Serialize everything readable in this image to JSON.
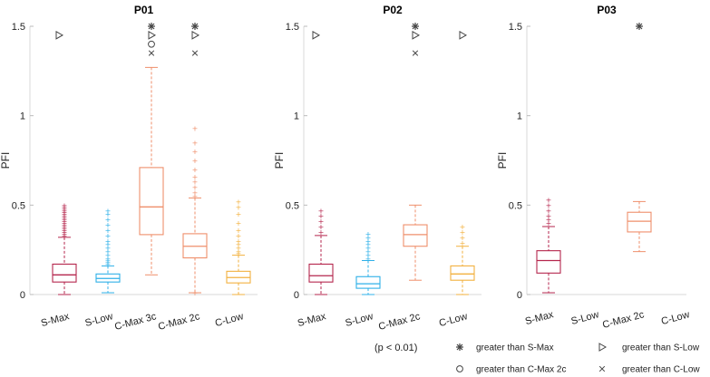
{
  "chart_data": [
    {
      "type": "box",
      "title": "P01",
      "ylabel": "PFI",
      "ylim": [
        0,
        1.5
      ],
      "yticks": [
        0,
        0.5,
        1,
        1.5
      ],
      "ytick_labels": [
        "0",
        "0.5",
        "1",
        "1.5"
      ],
      "boxes": [
        {
          "category": "S-Max",
          "color": "#b5264d",
          "min": 0.0,
          "q1": 0.07,
          "median": 0.11,
          "q3": 0.17,
          "max": 0.32,
          "outliers": [
            0.33,
            0.34,
            0.35,
            0.36,
            0.37,
            0.38,
            0.39,
            0.4,
            0.41,
            0.42,
            0.43,
            0.44,
            0.45,
            0.46,
            0.47,
            0.48,
            0.49,
            0.5
          ],
          "sig": [
            "triangle"
          ]
        },
        {
          "category": "S-Low",
          "color": "#2fb0e8",
          "min": 0.01,
          "q1": 0.07,
          "median": 0.09,
          "q3": 0.115,
          "max": 0.16,
          "outliers": [
            0.17,
            0.18,
            0.19,
            0.2,
            0.22,
            0.24,
            0.26,
            0.28,
            0.3,
            0.33,
            0.36,
            0.39,
            0.42,
            0.45,
            0.47
          ],
          "sig": []
        },
        {
          "category": "C-Max 3c",
          "color": "#ef8f6b",
          "min": 0.11,
          "q1": 0.335,
          "median": 0.49,
          "q3": 0.71,
          "max": 1.27,
          "outliers": [],
          "sig": [
            "asterisk",
            "triangle",
            "circle",
            "cross"
          ]
        },
        {
          "category": "C-Max 2c",
          "color": "#ef8f6b",
          "min": 0.01,
          "q1": 0.205,
          "median": 0.27,
          "q3": 0.34,
          "max": 0.54,
          "outliers": [
            0.55,
            0.57,
            0.6,
            0.63,
            0.66,
            0.7,
            0.75,
            0.8,
            0.85,
            0.93,
            0.01
          ],
          "sig": [
            "asterisk",
            "triangle",
            "cross"
          ]
        },
        {
          "category": "C-Low",
          "color": "#f2b13f",
          "min": 0.0,
          "q1": 0.065,
          "median": 0.095,
          "q3": 0.13,
          "max": 0.22,
          "outliers": [
            0.23,
            0.24,
            0.26,
            0.28,
            0.3,
            0.33,
            0.36,
            0.4,
            0.45,
            0.49,
            0.52
          ],
          "sig": []
        }
      ]
    },
    {
      "type": "box",
      "title": "P02",
      "ylabel": "PFI",
      "ylim": [
        0,
        1.5
      ],
      "yticks": [
        0,
        0.5,
        1,
        1.5
      ],
      "ytick_labels": [
        "0",
        "0.5",
        "1",
        "1.5"
      ],
      "boxes": [
        {
          "category": "S-Max",
          "color": "#b5264d",
          "min": 0.0,
          "q1": 0.07,
          "median": 0.105,
          "q3": 0.17,
          "max": 0.33,
          "outliers": [
            0.35,
            0.38,
            0.41,
            0.44,
            0.47
          ],
          "sig": [
            "triangle"
          ]
        },
        {
          "category": "S-Low",
          "color": "#2fb0e8",
          "min": 0.0,
          "q1": 0.035,
          "median": 0.06,
          "q3": 0.1,
          "max": 0.19,
          "outliers": [
            0.2,
            0.22,
            0.24,
            0.26,
            0.28,
            0.3,
            0.32,
            0.34
          ],
          "sig": []
        },
        {
          "category": "C-Max 2c",
          "color": "#ef8f6b",
          "min": 0.08,
          "q1": 0.27,
          "median": 0.335,
          "q3": 0.39,
          "max": 0.5,
          "outliers": [],
          "sig": [
            "asterisk",
            "triangle",
            "cross"
          ]
        },
        {
          "category": "C-Low",
          "color": "#f2b13f",
          "min": 0.0,
          "q1": 0.08,
          "median": 0.115,
          "q3": 0.16,
          "max": 0.27,
          "outliers": [
            0.29,
            0.32,
            0.35,
            0.38
          ],
          "sig": [
            "triangle"
          ]
        }
      ]
    },
    {
      "type": "box",
      "title": "P03",
      "ylabel": "PFI",
      "ylim": [
        0,
        1.5
      ],
      "yticks": [
        0,
        0.5,
        1,
        1.5
      ],
      "ytick_labels": [
        "0",
        "0.5",
        "1",
        "1.5"
      ],
      "boxes": [
        {
          "category": "S-Max",
          "color": "#b5264d",
          "min": 0.01,
          "q1": 0.12,
          "median": 0.19,
          "q3": 0.245,
          "max": 0.38,
          "outliers": [
            0.4,
            0.42,
            0.44,
            0.47,
            0.5,
            0.53
          ],
          "sig": []
        },
        {
          "category": "S-Low",
          "color": "#2fb0e8",
          "empty": true,
          "sig": []
        },
        {
          "category": "C-Max 2c",
          "color": "#ef8f6b",
          "min": 0.24,
          "q1": 0.35,
          "median": 0.41,
          "q3": 0.46,
          "max": 0.52,
          "outliers": [],
          "sig": [
            "asterisk"
          ]
        },
        {
          "category": "C-Low",
          "color": "#f2b13f",
          "empty": true,
          "sig": []
        }
      ]
    }
  ],
  "legend": {
    "note": "(p < 0.01)",
    "items": [
      {
        "symbol": "asterisk",
        "label": "greater than S-Max"
      },
      {
        "symbol": "triangle",
        "label": "greater than S-Low"
      },
      {
        "symbol": "circle",
        "label": "greater than C-Max 2c"
      },
      {
        "symbol": "cross",
        "label": "greater than C-Low"
      }
    ]
  },
  "colors": {
    "axis": "#d9d9d9",
    "text": "#222222",
    "marker": "#444444"
  }
}
